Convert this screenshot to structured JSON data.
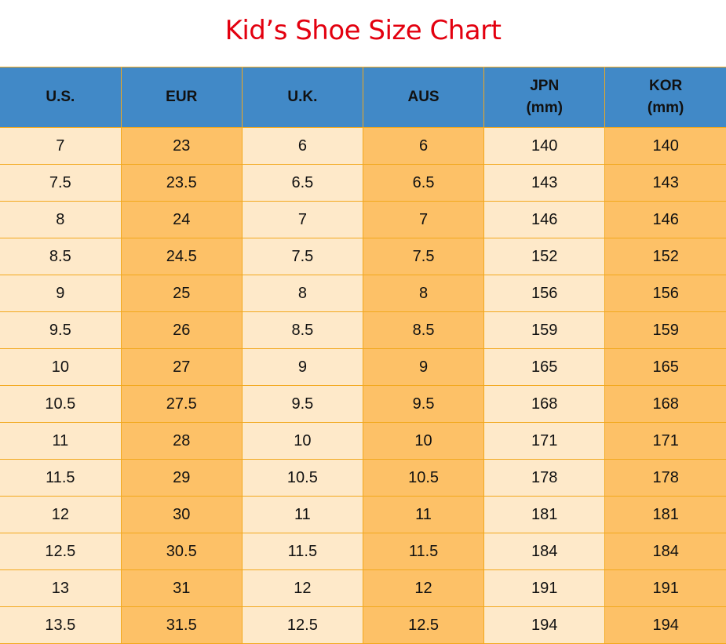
{
  "title": "Kid’s Shoe Size Chart",
  "colors": {
    "title": "#e3000f",
    "header": "#4189c7",
    "light_column": "#fee9c9",
    "dark_column": "#fdc167",
    "border": "#f2a81d"
  },
  "table": {
    "headers": [
      [
        "U.S."
      ],
      [
        "EUR"
      ],
      [
        "U.K."
      ],
      [
        "AUS"
      ],
      [
        "JPN",
        "(mm)"
      ],
      [
        "KOR",
        "(mm)"
      ]
    ],
    "rows": [
      [
        "7",
        "23",
        "6",
        "6",
        "140",
        "140"
      ],
      [
        "7.5",
        "23.5",
        "6.5",
        "6.5",
        "143",
        "143"
      ],
      [
        "8",
        "24",
        "7",
        "7",
        "146",
        "146"
      ],
      [
        "8.5",
        "24.5",
        "7.5",
        "7.5",
        "152",
        "152"
      ],
      [
        "9",
        "25",
        "8",
        "8",
        "156",
        "156"
      ],
      [
        "9.5",
        "26",
        "8.5",
        "8.5",
        "159",
        "159"
      ],
      [
        "10",
        "27",
        "9",
        "9",
        "165",
        "165"
      ],
      [
        "10.5",
        "27.5",
        "9.5",
        "9.5",
        "168",
        "168"
      ],
      [
        "11",
        "28",
        "10",
        "10",
        "171",
        "171"
      ],
      [
        "11.5",
        "29",
        "10.5",
        "10.5",
        "178",
        "178"
      ],
      [
        "12",
        "30",
        "11",
        "11",
        "181",
        "181"
      ],
      [
        "12.5",
        "30.5",
        "11.5",
        "11.5",
        "184",
        "184"
      ],
      [
        "13",
        "31",
        "12",
        "12",
        "191",
        "191"
      ],
      [
        "13.5",
        "31.5",
        "12.5",
        "12.5",
        "194",
        "194"
      ]
    ]
  }
}
